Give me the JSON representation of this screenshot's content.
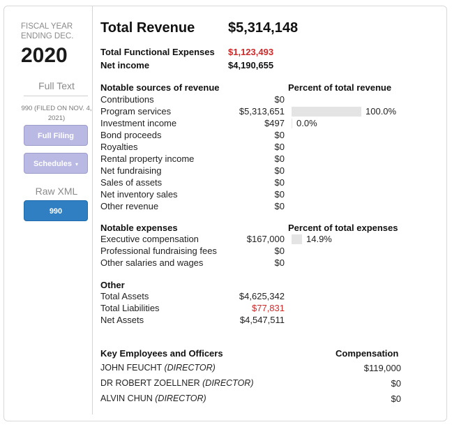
{
  "sidebar": {
    "fiscal_year_label": "FISCAL YEAR ENDING DEC.",
    "year": "2020",
    "full_text_label": "Full Text",
    "filed_label": "990 (FILED ON NOV. 4, 2021)",
    "full_filing_button": "Full Filing",
    "schedules_button": "Schedules",
    "schedules_caret": "▾",
    "raw_xml_label": "Raw XML",
    "form_990_button": "990"
  },
  "summary": {
    "total_revenue_label": "Total Revenue",
    "total_revenue_value": "$5,314,148",
    "total_expenses_label": "Total Functional Expenses",
    "total_expenses_value": "$1,123,493",
    "net_income_label": "Net income",
    "net_income_value": "$4,190,655"
  },
  "revenue": {
    "header": "Notable sources of revenue",
    "percent_header": "Percent of total revenue",
    "rows": [
      {
        "label": "Contributions",
        "value": "$0",
        "percent": "",
        "fraction": null
      },
      {
        "label": "Program services",
        "value": "$5,313,651",
        "percent": "100.0%",
        "fraction": 1.0
      },
      {
        "label": "Investment income",
        "value": "$497",
        "percent": "0.0%",
        "fraction": 0.0
      },
      {
        "label": "Bond proceeds",
        "value": "$0",
        "percent": "",
        "fraction": null
      },
      {
        "label": "Royalties",
        "value": "$0",
        "percent": "",
        "fraction": null
      },
      {
        "label": "Rental property income",
        "value": "$0",
        "percent": "",
        "fraction": null
      },
      {
        "label": "Net fundraising",
        "value": "$0",
        "percent": "",
        "fraction": null
      },
      {
        "label": "Sales of assets",
        "value": "$0",
        "percent": "",
        "fraction": null
      },
      {
        "label": "Net inventory sales",
        "value": "$0",
        "percent": "",
        "fraction": null
      },
      {
        "label": "Other revenue",
        "value": "$0",
        "percent": "",
        "fraction": null
      }
    ]
  },
  "expenses": {
    "header": "Notable expenses",
    "percent_header": "Percent of total expenses",
    "rows": [
      {
        "label": "Executive compensation",
        "value": "$167,000",
        "percent": "14.9%",
        "fraction": 0.149
      },
      {
        "label": "Professional fundraising fees",
        "value": "$0",
        "percent": "",
        "fraction": null
      },
      {
        "label": "Other salaries and wages",
        "value": "$0",
        "percent": "",
        "fraction": null
      }
    ]
  },
  "other": {
    "header": "Other",
    "rows": [
      {
        "label": "Total Assets",
        "value": "$4,625,342",
        "negative": false
      },
      {
        "label": "Total Liabilities",
        "value": "$77,831",
        "negative": true
      },
      {
        "label": "Net Assets",
        "value": "$4,547,511",
        "negative": false
      }
    ]
  },
  "employees": {
    "header": "Key Employees and Officers",
    "comp_header": "Compensation",
    "rows": [
      {
        "name": "JOHN FEUCHT",
        "title": "(DIRECTOR)",
        "compensation": "$119,000"
      },
      {
        "name": "DR ROBERT ZOELLNER",
        "title": "(DIRECTOR)",
        "compensation": "$0"
      },
      {
        "name": "ALVIN CHUN",
        "title": "(DIRECTOR)",
        "compensation": "$0"
      }
    ]
  },
  "colors": {
    "negative": "#cc2a2a",
    "button_lavender": "#b9b9e3",
    "button_blue": "#2f7fc2",
    "bar_gray": "#e4e4e4"
  }
}
